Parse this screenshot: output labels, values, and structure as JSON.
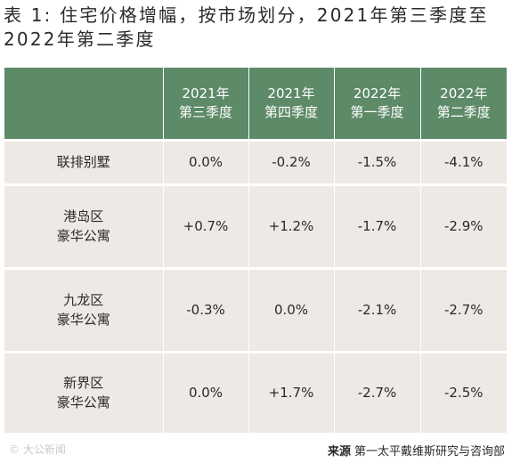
{
  "title": "表 1: 住宅价格增幅，按市场划分，2021年第三季度至2022年第二季度",
  "table": {
    "header": [
      "",
      "2021年\n第三季度",
      "2021年\n第四季度",
      "2022年\n第一季度",
      "2022年\n第二季度"
    ],
    "rows": [
      {
        "label": [
          "联排别墅"
        ],
        "values": [
          "0.0%",
          "-0.2%",
          "-1.5%",
          "-4.1%"
        ]
      },
      {
        "label": [
          "港岛区",
          "豪华公寓"
        ],
        "values": [
          "+0.7%",
          "+1.2%",
          "-1.7%",
          "-2.9%"
        ]
      },
      {
        "label": [
          "九龙区",
          "豪华公寓"
        ],
        "values": [
          "-0.3%",
          "0.0%",
          "-2.1%",
          "-2.7%"
        ]
      },
      {
        "label": [
          "新界区",
          "豪华公寓"
        ],
        "values": [
          "0.0%",
          "+1.7%",
          "-2.7%",
          "-2.5%"
        ]
      }
    ]
  },
  "source": {
    "label": "来源",
    "text": "第一太平戴维斯研究与咨询部"
  },
  "watermark": "© 大公新闻",
  "colors": {
    "header_bg": "#5d8a67",
    "body_bg": "#efe9e5"
  }
}
